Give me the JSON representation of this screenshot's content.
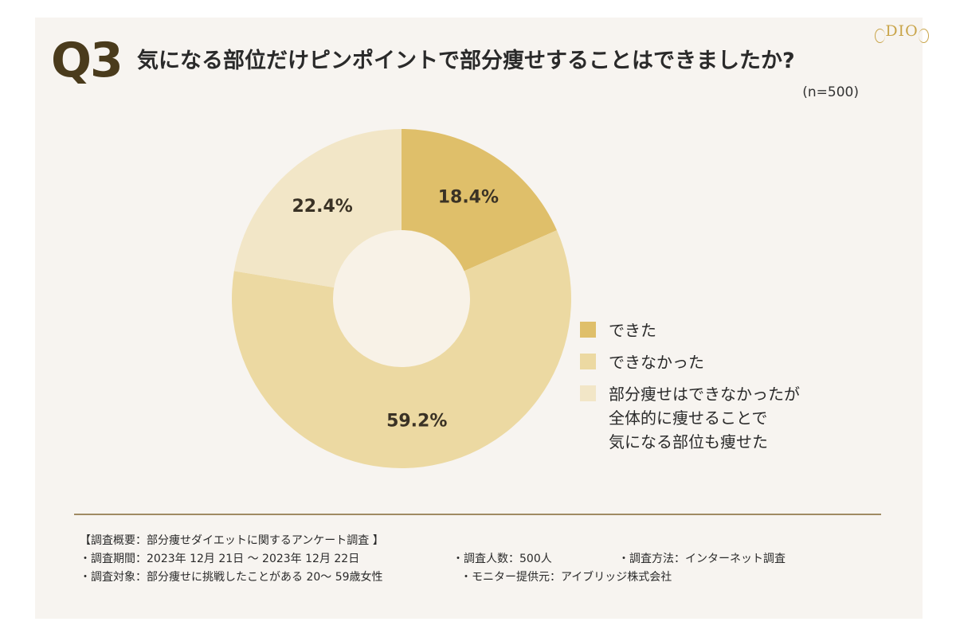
{
  "header": {
    "q_label": "Q3",
    "question": "気になる部位だけピンポイントで部分痩せすることはできましたか?",
    "sample": "(n=500)"
  },
  "logo": {
    "mark": "DIO",
    "sub": ""
  },
  "chart_data": {
    "type": "pie",
    "donut": true,
    "slices": [
      {
        "label": "できた",
        "value": 18.4,
        "value_label": "18.4%",
        "color": "#dfbf6a"
      },
      {
        "label": "できなかった",
        "value": 59.2,
        "value_label": "59.2%",
        "color": "#ecd9a2"
      },
      {
        "label": "部分痩せはできなかったが\n全体的に痩せることで\n気になる部位も痩せた",
        "value": 22.4,
        "value_label": "22.4%",
        "color": "#f2e6c7"
      }
    ],
    "hole_color": "#f8f2e7",
    "legend_position": "right"
  },
  "survey": {
    "title": "【調査概要：部分痩せダイエットに関するアンケート調査 】",
    "period": "・調査期間：2023年 12月 21日 ～ 2023年 12月 22日",
    "respondents": "・調査人数：500人",
    "method": "・調査方法：インターネット調査",
    "target": "・調査対象：部分痩せに挑戦したことがある 20～ 59歳女性",
    "provider": "・モニター提供元：アイブリッジ株式会社"
  }
}
